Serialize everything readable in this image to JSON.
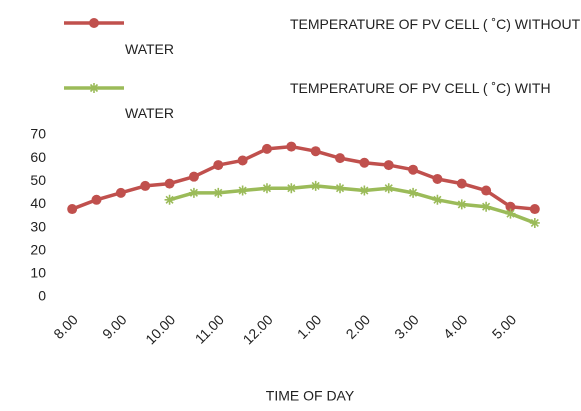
{
  "chart_data": {
    "type": "line",
    "x_label": "TIME OF DAY",
    "categories": [
      "8.00",
      null,
      "9.00",
      null,
      "10.00",
      null,
      "11.00",
      null,
      "12.00",
      null,
      "1.00",
      null,
      "2.00",
      null,
      "3.00",
      null,
      "4.00",
      null,
      "5.00",
      null
    ],
    "series": [
      {
        "name": "TEMPERATURE OF PV CELL ( ˚C) WITHOUT WATER",
        "color": "#c0504d",
        "marker": "circle",
        "values": [
          38,
          42,
          45,
          48,
          49,
          52,
          57,
          59,
          64,
          65,
          63,
          60,
          58,
          57,
          55,
          51,
          49,
          46,
          39,
          38
        ]
      },
      {
        "name": "TEMPERATURE OF PV CELL ( ˚C) WITH WATER",
        "color": "#9bbb59",
        "marker": "star",
        "values": [
          null,
          null,
          null,
          null,
          42,
          45,
          45,
          46,
          47,
          47,
          48,
          47,
          46,
          47,
          45,
          42,
          40,
          39,
          36,
          32
        ]
      }
    ],
    "ylim": [
      0,
      70
    ],
    "yticks": [
      0,
      10,
      20,
      30,
      40,
      50,
      60,
      70
    ],
    "legend": "top",
    "grid": false
  }
}
